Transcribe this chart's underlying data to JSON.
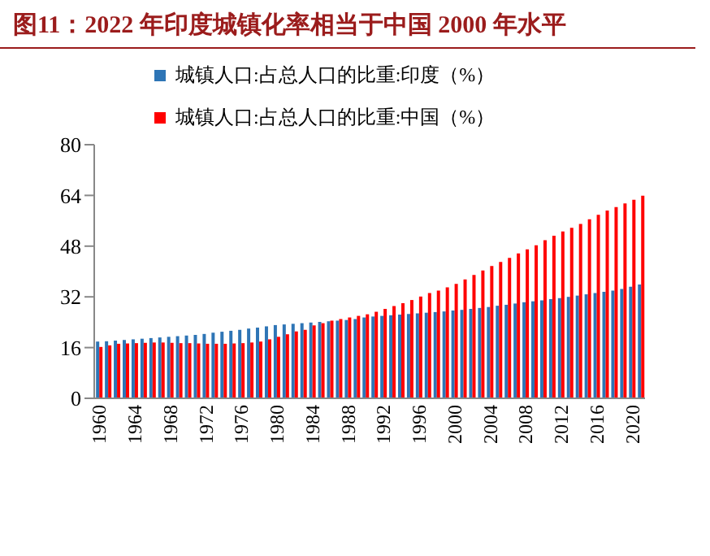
{
  "chart_data": {
    "type": "bar",
    "title": "图11：2022 年印度城镇化率相当于中国 2000 年水平",
    "categories": [
      "1960",
      null,
      null,
      null,
      "1964",
      null,
      null,
      null,
      "1968",
      null,
      null,
      null,
      "1972",
      null,
      null,
      null,
      "1976",
      null,
      null,
      null,
      "1980",
      null,
      null,
      null,
      "1984",
      null,
      null,
      null,
      "1988",
      null,
      null,
      null,
      "1992",
      null,
      null,
      null,
      "1996",
      null,
      null,
      null,
      "2000",
      null,
      null,
      null,
      "2004",
      null,
      null,
      null,
      "2008",
      null,
      null,
      null,
      "2012",
      null,
      null,
      null,
      "2016",
      null,
      null,
      null,
      "2020",
      null
    ],
    "series": [
      {
        "name": "城镇人口:占总人口的比重:印度（%）",
        "color": "#2e75b6",
        "values": [
          17.9,
          18.0,
          18.2,
          18.4,
          18.6,
          18.8,
          19.0,
          19.2,
          19.4,
          19.6,
          19.8,
          20.0,
          20.3,
          20.7,
          21.0,
          21.3,
          21.6,
          22.0,
          22.3,
          22.7,
          23.1,
          23.3,
          23.5,
          23.7,
          23.9,
          24.1,
          24.3,
          24.5,
          24.7,
          25.0,
          25.5,
          25.8,
          26.0,
          26.2,
          26.4,
          26.6,
          26.8,
          27.0,
          27.2,
          27.4,
          27.7,
          27.9,
          28.2,
          28.5,
          28.8,
          29.2,
          29.5,
          29.9,
          30.3,
          30.6,
          30.9,
          31.3,
          31.6,
          32.0,
          32.4,
          32.8,
          33.2,
          33.6,
          34.0,
          34.5,
          35.2,
          35.9
        ]
      },
      {
        "name": "城镇人口:占总人口的比重:中国（%）",
        "color": "#ff0000",
        "values": [
          16.2,
          16.7,
          17.2,
          17.3,
          17.4,
          17.5,
          17.6,
          17.6,
          17.5,
          17.4,
          17.4,
          17.3,
          17.2,
          17.2,
          17.2,
          17.3,
          17.4,
          17.6,
          17.9,
          18.6,
          19.4,
          20.2,
          21.1,
          21.6,
          23.0,
          23.7,
          24.5,
          25.0,
          25.5,
          26.0,
          26.5,
          27.3,
          28.2,
          29.1,
          30.0,
          31.0,
          32.1,
          33.2,
          34.0,
          35.0,
          36.1,
          37.5,
          38.9,
          40.3,
          41.7,
          43.0,
          44.3,
          45.7,
          47.0,
          48.3,
          49.9,
          51.3,
          52.6,
          53.8,
          55.0,
          56.5,
          57.9,
          59.2,
          60.3,
          61.5,
          62.6,
          63.9
        ]
      }
    ],
    "ylim": [
      0,
      80
    ],
    "yticks": [
      0,
      16,
      32,
      48,
      64,
      80
    ],
    "grid": false,
    "legend": "top left",
    "marker": "square"
  }
}
